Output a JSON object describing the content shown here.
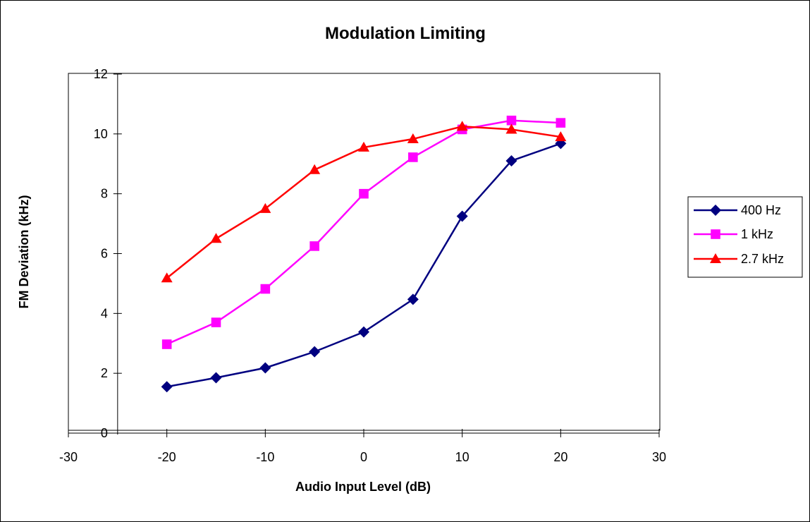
{
  "chart_data": {
    "type": "line",
    "title": "Modulation Limiting",
    "xlabel": "Audio Input Level (dB)",
    "ylabel": "FM Deviation (kHz)",
    "xlim": [
      -30,
      30
    ],
    "ylim": [
      0,
      12
    ],
    "xticks": [
      -30,
      -20,
      -10,
      0,
      10,
      20,
      30
    ],
    "yticks": [
      0,
      2,
      4,
      6,
      8,
      10,
      12
    ],
    "x": [
      -20,
      -15,
      -10,
      -5,
      0,
      5,
      10,
      15,
      20
    ],
    "grid": false,
    "legend_position": "right",
    "series": [
      {
        "name": "400 Hz",
        "color": "#000080",
        "marker": "diamond",
        "values": [
          1.55,
          1.85,
          2.18,
          2.72,
          3.38,
          4.47,
          7.25,
          9.1,
          9.68
        ]
      },
      {
        "name": "1 kHz",
        "color": "#FF00FF",
        "marker": "square",
        "values": [
          2.97,
          3.7,
          4.82,
          6.25,
          8.0,
          9.22,
          10.15,
          10.45,
          10.37
        ]
      },
      {
        "name": "2.7 kHz",
        "color": "#FF0000",
        "marker": "triangle",
        "values": [
          5.18,
          6.5,
          7.5,
          8.8,
          9.55,
          9.83,
          10.25,
          10.15,
          9.9
        ]
      }
    ]
  }
}
